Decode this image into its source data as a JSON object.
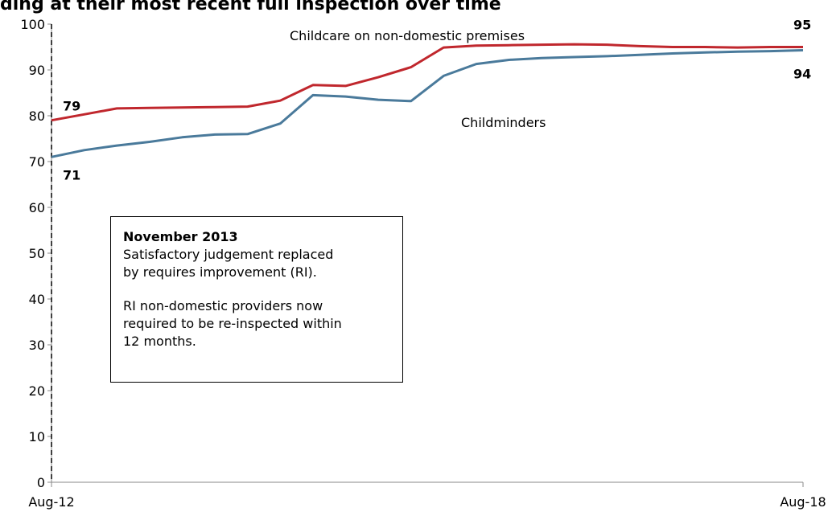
{
  "title": "ding at their most recent full inspection over time",
  "chart_data": {
    "type": "line",
    "title": "ding at their most recent full inspection over time",
    "xlabel": "",
    "ylabel": "",
    "ylim": [
      0,
      100
    ],
    "yticks": [
      "0",
      "10",
      "20",
      "30",
      "40",
      "50",
      "60",
      "70",
      "80",
      "90",
      "100"
    ],
    "x_tick_labels": [
      "Aug-12",
      "Aug-18"
    ],
    "grid": false,
    "x": [
      "Aug-12",
      "Dec-12",
      "Mar-13",
      "Jun-13",
      "Aug-13",
      "Dec-13",
      "Mar-14",
      "Jun-14",
      "Aug-14",
      "Dec-14",
      "Mar-15",
      "Jun-15",
      "Aug-15",
      "Dec-15",
      "Mar-16",
      "Jun-16",
      "Aug-16",
      "Dec-16",
      "Mar-17",
      "Jun-17",
      "Aug-17",
      "Dec-17",
      "Mar-18",
      "Aug-18"
    ],
    "series": [
      {
        "name": "Childcare on non-domestic premises",
        "color": "#c0272d",
        "values": [
          79,
          80.3,
          81.6,
          81.7,
          81.8,
          81.9,
          82.0,
          83.3,
          86.7,
          86.5,
          88.4,
          90.6,
          94.9,
          95.3,
          95.4,
          95.5,
          95.6,
          95.5,
          95.2,
          95.0,
          95.0,
          94.9,
          95.0,
          95.0
        ],
        "start_label": "79",
        "end_label": "95"
      },
      {
        "name": "Childminders",
        "color": "#4a7a9b",
        "values": [
          71,
          72.5,
          73.5,
          74.3,
          75.3,
          75.9,
          76.0,
          78.3,
          84.5,
          84.2,
          83.5,
          83.2,
          88.7,
          91.3,
          92.2,
          92.6,
          92.8,
          93.0,
          93.3,
          93.6,
          93.8,
          94.0,
          94.1,
          94.3
        ],
        "start_label": "71",
        "end_label": "94"
      }
    ],
    "vertical_marker": {
      "at": "Nov-13",
      "style": "dashed"
    },
    "annotation": {
      "title": "November 2013",
      "lines": [
        "Satisfactory judgement replaced",
        "by requires improvement (RI).",
        "",
        "RI non-domestic providers now",
        "required to be re-inspected within",
        "12 months."
      ]
    }
  }
}
